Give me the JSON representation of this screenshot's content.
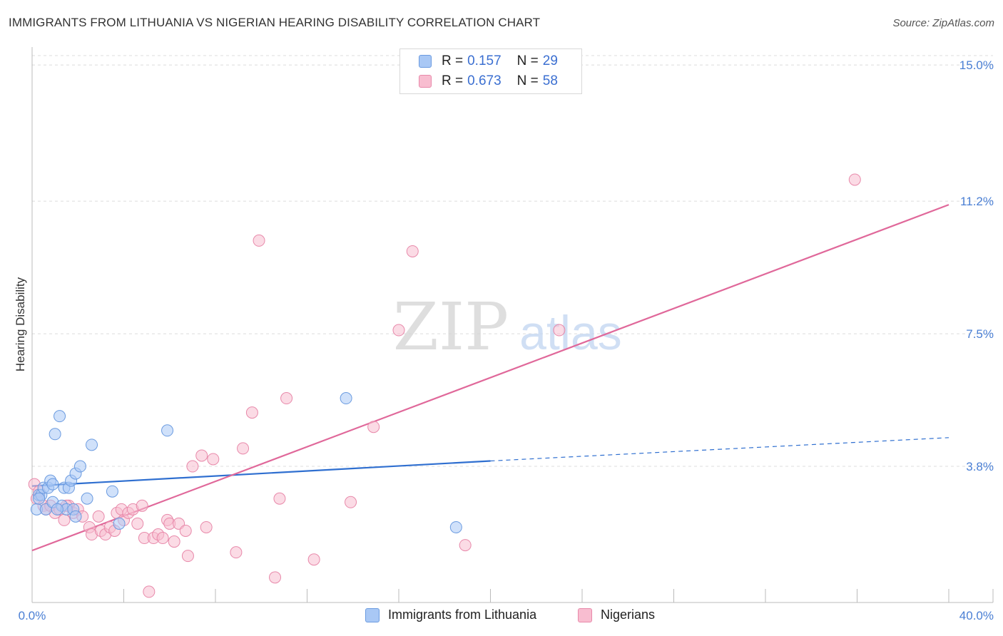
{
  "header": {
    "title": "IMMIGRANTS FROM LITHUANIA VS NIGERIAN HEARING DISABILITY CORRELATION CHART",
    "source": "Source: ZipAtlas.com"
  },
  "watermark": {
    "zip": "ZIP",
    "atlas": "atlas"
  },
  "legend": {
    "series": [
      {
        "r_label": "R =",
        "r_value": "0.157",
        "n_label": "N =",
        "n_value": "29",
        "color": "#a9c8f5",
        "border": "#6b9be0"
      },
      {
        "r_label": "R =",
        "r_value": "0.673",
        "n_label": "N =",
        "n_value": "58",
        "color": "#f8bdd0",
        "border": "#e889aa"
      }
    ]
  },
  "bottom_legend": {
    "items": [
      {
        "label": "Immigrants from Lithuania",
        "color": "#a9c8f5",
        "border": "#6b9be0"
      },
      {
        "label": "Nigerians",
        "color": "#f8bdd0",
        "border": "#e889aa"
      }
    ]
  },
  "chart_data": {
    "type": "scatter",
    "title": "IMMIGRANTS FROM LITHUANIA VS NIGERIAN HEARING DISABILITY CORRELATION CHART",
    "ylabel": "Hearing Disability",
    "xlabel": "",
    "xlim": [
      0,
      40
    ],
    "ylim": [
      0,
      15.5
    ],
    "x_tick_labels": [
      "0.0%",
      "40.0%"
    ],
    "y_ticks": [
      3.8,
      7.5,
      11.2,
      15.0
    ],
    "y_tick_labels": [
      "3.8%",
      "7.5%",
      "11.2%",
      "15.0%"
    ],
    "grid": "horizontal dashed",
    "legend_position": "top-center",
    "series": [
      {
        "name": "Immigrants from Lithuania",
        "color": "#6b9be0",
        "fill": "#a9c8f5",
        "r": 0.157,
        "n": 29,
        "points": [
          [
            0.2,
            2.6
          ],
          [
            0.3,
            3.0
          ],
          [
            0.4,
            3.0
          ],
          [
            0.5,
            3.2
          ],
          [
            0.6,
            2.6
          ],
          [
            0.7,
            3.2
          ],
          [
            0.8,
            3.4
          ],
          [
            0.9,
            3.3
          ],
          [
            0.9,
            2.8
          ],
          [
            1.0,
            4.7
          ],
          [
            1.2,
            5.2
          ],
          [
            1.3,
            2.7
          ],
          [
            1.4,
            3.2
          ],
          [
            1.5,
            2.6
          ],
          [
            1.6,
            3.2
          ],
          [
            1.7,
            3.4
          ],
          [
            1.8,
            2.6
          ],
          [
            1.9,
            2.4
          ],
          [
            1.9,
            3.6
          ],
          [
            2.1,
            3.8
          ],
          [
            2.4,
            2.9
          ],
          [
            2.6,
            4.4
          ],
          [
            3.5,
            3.1
          ],
          [
            3.8,
            2.2
          ],
          [
            5.9,
            4.8
          ],
          [
            13.7,
            5.7
          ],
          [
            18.5,
            2.1
          ],
          [
            0.3,
            2.9
          ],
          [
            1.1,
            2.6
          ]
        ],
        "trend": {
          "x0": 0,
          "y0": 3.25,
          "x1": 20,
          "y1": 3.95,
          "dashed_to_x": 40,
          "dashed_to_y": 4.6
        }
      },
      {
        "name": "Nigerians",
        "color": "#e889aa",
        "fill": "#f8bdd0",
        "r": 0.673,
        "n": 58,
        "points": [
          [
            0.1,
            3.3
          ],
          [
            0.2,
            2.9
          ],
          [
            0.3,
            3.1
          ],
          [
            0.5,
            2.7
          ],
          [
            0.6,
            2.6
          ],
          [
            0.8,
            2.7
          ],
          [
            1.0,
            2.5
          ],
          [
            1.2,
            2.6
          ],
          [
            1.4,
            2.3
          ],
          [
            1.6,
            2.7
          ],
          [
            1.8,
            2.5
          ],
          [
            2.0,
            2.6
          ],
          [
            2.2,
            2.4
          ],
          [
            2.5,
            2.1
          ],
          [
            2.6,
            1.9
          ],
          [
            2.9,
            2.4
          ],
          [
            3.0,
            2.0
          ],
          [
            3.2,
            1.9
          ],
          [
            3.4,
            2.1
          ],
          [
            3.6,
            2.0
          ],
          [
            3.7,
            2.5
          ],
          [
            3.9,
            2.6
          ],
          [
            4.0,
            2.3
          ],
          [
            4.2,
            2.5
          ],
          [
            4.4,
            2.6
          ],
          [
            4.6,
            2.2
          ],
          [
            4.8,
            2.7
          ],
          [
            4.9,
            1.8
          ],
          [
            5.1,
            0.3
          ],
          [
            5.3,
            1.8
          ],
          [
            5.5,
            1.9
          ],
          [
            5.7,
            1.8
          ],
          [
            5.9,
            2.3
          ],
          [
            6.0,
            2.2
          ],
          [
            6.2,
            1.7
          ],
          [
            6.4,
            2.2
          ],
          [
            6.7,
            2.0
          ],
          [
            6.8,
            1.3
          ],
          [
            7.0,
            3.8
          ],
          [
            7.4,
            4.1
          ],
          [
            7.6,
            2.1
          ],
          [
            7.9,
            4.0
          ],
          [
            8.9,
            1.4
          ],
          [
            9.2,
            4.3
          ],
          [
            9.6,
            5.3
          ],
          [
            9.9,
            10.1
          ],
          [
            10.6,
            0.7
          ],
          [
            10.8,
            2.9
          ],
          [
            11.1,
            5.7
          ],
          [
            12.3,
            1.2
          ],
          [
            13.9,
            2.8
          ],
          [
            14.9,
            4.9
          ],
          [
            16.0,
            7.6
          ],
          [
            16.6,
            9.8
          ],
          [
            18.9,
            1.6
          ],
          [
            23.0,
            7.6
          ],
          [
            35.9,
            11.8
          ],
          [
            1.5,
            2.7
          ]
        ],
        "trend": {
          "x0": 0,
          "y0": 1.45,
          "x1": 40,
          "y1": 11.1
        }
      }
    ]
  }
}
